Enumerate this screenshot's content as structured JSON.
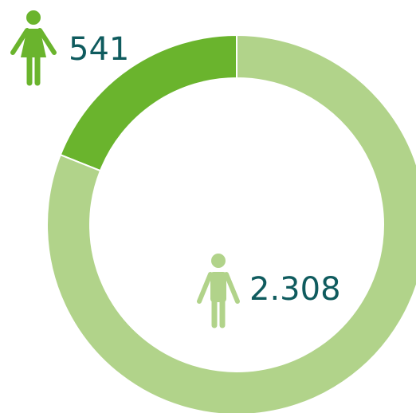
{
  "chart_data": {
    "type": "pie",
    "donut": true,
    "values": [
      541,
      2308
    ],
    "value_labels": [
      "541",
      "2.308"
    ],
    "colors": [
      "#6ab42d",
      "#b1d38a"
    ]
  }
}
